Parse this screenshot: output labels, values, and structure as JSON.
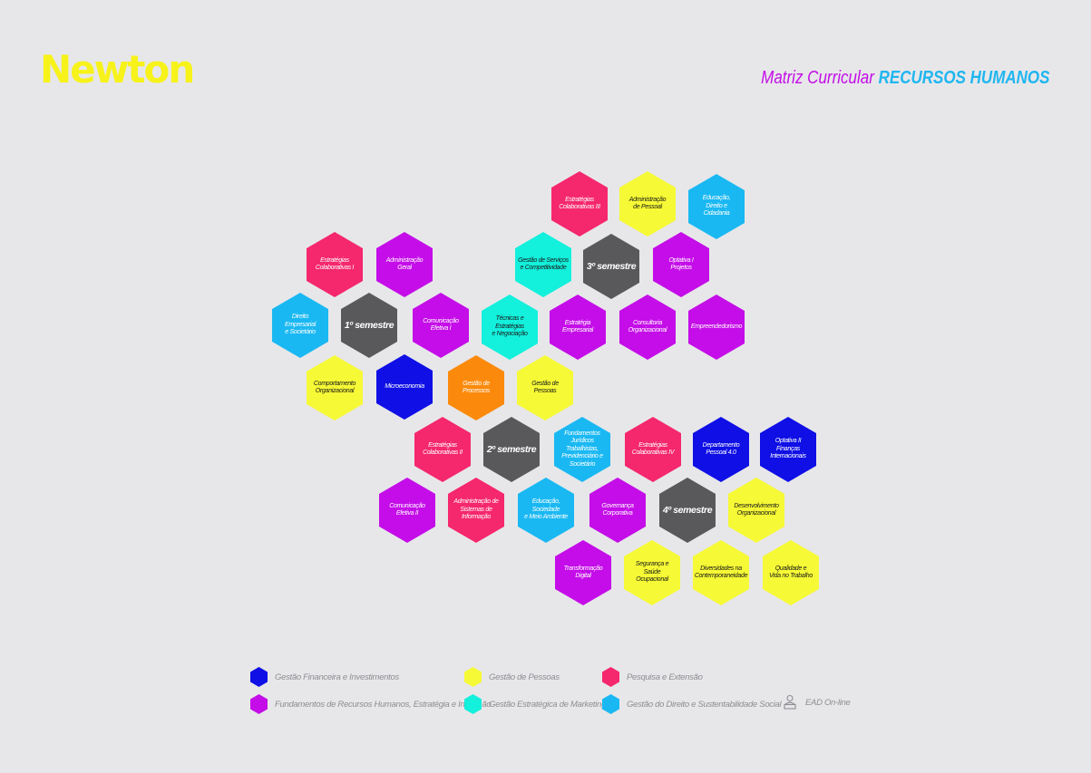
{
  "brand": {
    "logo_text": "Newton"
  },
  "header": {
    "title_prefix": "Matriz Curricular",
    "title_course": "RECURSOS HUMANOS"
  },
  "colors": {
    "financeiro": "#0f0fe6",
    "fundamentos": "#c40de8",
    "pessoas": "#f6f935",
    "marketing": "#13f0dc",
    "pesquisa": "#f5276d",
    "direito": "#1ab8f2",
    "semestre": "#59595c",
    "processos": "#fb8a0c"
  },
  "hexes": [
    {
      "label": "Estratégias\nColaborativas III",
      "cat": "pesquisa"
    },
    {
      "label": "Administração\nde Pessoal",
      "cat": "pessoas"
    },
    {
      "label": "Educação,\nDireito e\nCidadania",
      "cat": "direito"
    },
    {
      "label": "Estratégias\nColaborativas I",
      "cat": "pesquisa"
    },
    {
      "label": "Administração Geral",
      "cat": "fundamentos"
    },
    {
      "label": "Gestão de Serviços\ne Competitividade",
      "cat": "marketing"
    },
    {
      "label": "3º semestre",
      "cat": "semestre",
      "semester": true
    },
    {
      "label": "Optativa I\nProjetos",
      "cat": "fundamentos"
    },
    {
      "label": "Direito\nEmpresarial\ne Societário",
      "cat": "direito"
    },
    {
      "label": "1º semestre",
      "cat": "semestre",
      "semester": true
    },
    {
      "label": "Comunicação\nEfetiva I",
      "cat": "fundamentos"
    },
    {
      "label": "Técnicas e Estratégias\ne Negociação",
      "cat": "marketing"
    },
    {
      "label": "Estratégia\nEmpresarial",
      "cat": "fundamentos"
    },
    {
      "label": "Consultoria\nOrganizacional",
      "cat": "fundamentos"
    },
    {
      "label": "Empreendedorismo",
      "cat": "fundamentos"
    },
    {
      "label": "Comportamento\nOrganizacional",
      "cat": "pessoas"
    },
    {
      "label": "Microeconomia",
      "cat": "financeiro"
    },
    {
      "label": "Gestão de\nProcessos",
      "cat": "processos"
    },
    {
      "label": "Gestão de\nPessoas",
      "cat": "pessoas"
    },
    {
      "label": "Estratégias\nColaborativas II",
      "cat": "pesquisa"
    },
    {
      "label": "2º semestre",
      "cat": "semestre",
      "semester": true
    },
    {
      "label": "Fundamentos\nJurídicos\nTrabalhistas,\nPrevidenciário e\nSocietário",
      "cat": "direito"
    },
    {
      "label": "Estratégias\nColaborativas IV",
      "cat": "pesquisa"
    },
    {
      "label": "Departamento\nPessoal 4.0",
      "cat": "financeiro"
    },
    {
      "label": "Optativa II\nFinanças\nInternacionais",
      "cat": "financeiro"
    },
    {
      "label": "Comunicação\nEfetiva II",
      "cat": "fundamentos"
    },
    {
      "label": "Administração de\nSistemas de\nInformação",
      "cat": "pesquisa"
    },
    {
      "label": "Educação, Sociedade\ne Meio Ambiente",
      "cat": "direito"
    },
    {
      "label": "Governança\nCorporativa",
      "cat": "fundamentos"
    },
    {
      "label": "4º semestre",
      "cat": "semestre",
      "semester": true
    },
    {
      "label": "Desenvolvimento\nOrganizacional",
      "cat": "pessoas"
    },
    {
      "label": "Transformação\nDigital",
      "cat": "fundamentos"
    },
    {
      "label": "Segurança e Saúde\nOcupacional",
      "cat": "pessoas"
    },
    {
      "label": "Diversidades na\nContemporaneidade",
      "cat": "pessoas"
    },
    {
      "label": "Qualidade e\nVida no Trabalho",
      "cat": "pessoas"
    }
  ],
  "legend": {
    "items": [
      {
        "label": "Gestão Financeira e Investimentos",
        "cat": "financeiro"
      },
      {
        "label": "Gestão de Pessoas",
        "cat": "pessoas"
      },
      {
        "label": "Pesquisa e Extensão",
        "cat": "pesquisa"
      },
      {
        "label": "Fundamentos de Recursos Humanos, Estratégia e Inovação",
        "cat": "fundamentos"
      },
      {
        "label": "Gestão Estratégica de Marketing",
        "cat": "marketing"
      },
      {
        "label": "Gestão do Direito e Sustentabilidade Social",
        "cat": "direito"
      }
    ],
    "ead": {
      "label": "EAD On-line",
      "icon": "person-laptop-icon"
    }
  }
}
